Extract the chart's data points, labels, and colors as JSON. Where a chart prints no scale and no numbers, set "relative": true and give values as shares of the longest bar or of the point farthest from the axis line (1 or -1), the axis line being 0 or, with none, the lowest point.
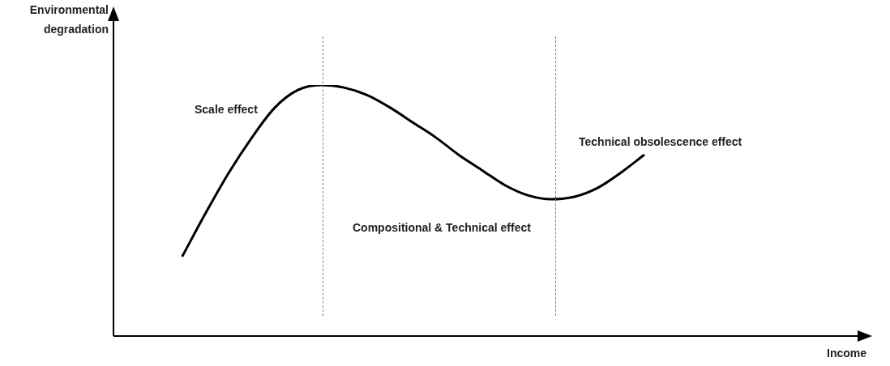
{
  "chart_data": {
    "type": "line",
    "relative": true,
    "xlabel": "Income",
    "ylabel": "Environmental degradation",
    "categories": [
      null,
      null,
      null,
      null,
      null,
      null,
      null,
      null,
      null,
      null,
      null,
      null,
      null,
      null,
      null,
      null,
      null,
      null,
      null,
      null,
      null,
      null,
      null,
      null,
      null,
      null,
      null,
      null,
      null,
      null,
      null,
      null,
      null
    ],
    "series": [
      {
        "color": "#000000",
        "values": [
          null,
          null,
          null,
          0.32,
          0.49,
          0.65,
          0.79,
          0.91,
          0.98,
          1.0,
          0.99,
          0.96,
          0.91,
          0.85,
          0.79,
          0.72,
          0.66,
          0.6,
          0.56,
          0.545,
          0.555,
          0.59,
          0.65,
          0.72,
          null,
          null,
          null,
          null,
          null,
          null,
          null,
          null,
          null
        ]
      }
    ],
    "annotations": [
      "Scale effect",
      "Compositional & Technical effect",
      "Technical obsolescence effect"
    ],
    "marker": "none",
    "line_style": "solid",
    "legend": false
  }
}
